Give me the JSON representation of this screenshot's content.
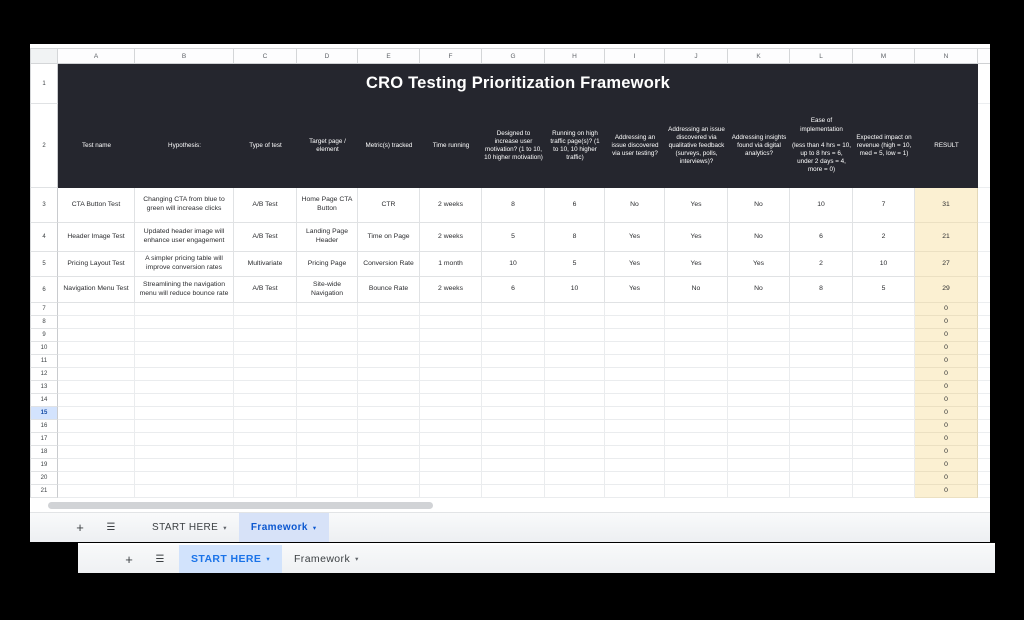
{
  "sheet": {
    "title": "CRO Testing Prioritization Framework",
    "column_letters": [
      "A",
      "B",
      "C",
      "D",
      "E",
      "F",
      "G",
      "H",
      "I",
      "J",
      "K",
      "L",
      "M",
      "N"
    ],
    "title_row_number": "1",
    "header_row_number": "2",
    "header_labels": [
      "Test name",
      "Hypothesis:",
      "Type of test",
      "Target page / element",
      "Metric(s) tracked",
      "Time running",
      "Designed to increase user motivation? (1 to 10, 10 higher motivation)",
      "Running on high traffic page(s)? (1 to 10, 10 higher traffic)",
      "Addressing an issue discovered via user testing?",
      "Addressing an issue discovered via qualitative feedback (surveys, polls, interviews)?",
      "Addressing insights found via digital analytics?",
      "Ease of implementation\n\n(less than 4 hrs = 10, up to 8 hrs = 6, under 2 days = 4, more = 0)",
      "Expected impact on revenue (high = 10, med = 5, low = 1)",
      "RESULT"
    ],
    "data_rows": [
      {
        "number": "3",
        "cells": [
          "CTA Button Test",
          "Changing CTA from blue to green will increase clicks",
          "A/B Test",
          "Home Page CTA Button",
          "CTR",
          "2 weeks",
          "8",
          "6",
          "No",
          "Yes",
          "No",
          "10",
          "7",
          "31"
        ]
      },
      {
        "number": "4",
        "cells": [
          "Header Image Test",
          "Updated header image will enhance user engagement",
          "A/B Test",
          "Landing Page Header",
          "Time on Page",
          "2 weeks",
          "5",
          "8",
          "Yes",
          "Yes",
          "No",
          "6",
          "2",
          "21"
        ]
      },
      {
        "number": "5",
        "cells": [
          "Pricing Layout Test",
          "A simpler pricing table will improve conversion rates",
          "Multivariate",
          "Pricing Page",
          "Conversion Rate",
          "1 month",
          "10",
          "5",
          "Yes",
          "Yes",
          "Yes",
          "2",
          "10",
          "27"
        ]
      },
      {
        "number": "6",
        "cells": [
          "Navigation Menu Test",
          "Streamlining the navigation menu will reduce bounce rate",
          "A/B Test",
          "Site-wide Navigation",
          "Bounce Rate",
          "2 weeks",
          "6",
          "10",
          "Yes",
          "No",
          "No",
          "8",
          "5",
          "29"
        ]
      }
    ],
    "empty_row_numbers": [
      "7",
      "8",
      "9",
      "10",
      "11",
      "12",
      "13",
      "14",
      "15",
      "16",
      "17",
      "18",
      "19",
      "20",
      "21"
    ],
    "empty_result_value": "0",
    "selected_row_number": "15"
  },
  "window1_bar": {
    "tabs": [
      {
        "label": "START HERE",
        "active": false
      },
      {
        "label": "Framework",
        "active": true
      }
    ]
  },
  "window2_bar": {
    "tabs": [
      {
        "label": "START HERE",
        "active": true
      },
      {
        "label": "Framework",
        "active": false
      }
    ]
  },
  "icons": {
    "add_sheet": "+",
    "all_sheets": "☰",
    "tab_dropdown": "▾"
  },
  "colors": {
    "table_header_bg": "#25262e",
    "result_column_fill": "#fbf0d2",
    "selected_row_fill": "#d3e3fd",
    "win1_active_tab_fill": "#d7e2f8",
    "win1_active_tab_text": "#0b57d0",
    "win2_active_tab_fill": "#d2e3fc",
    "win2_active_tab_text": "#1a73e8"
  }
}
